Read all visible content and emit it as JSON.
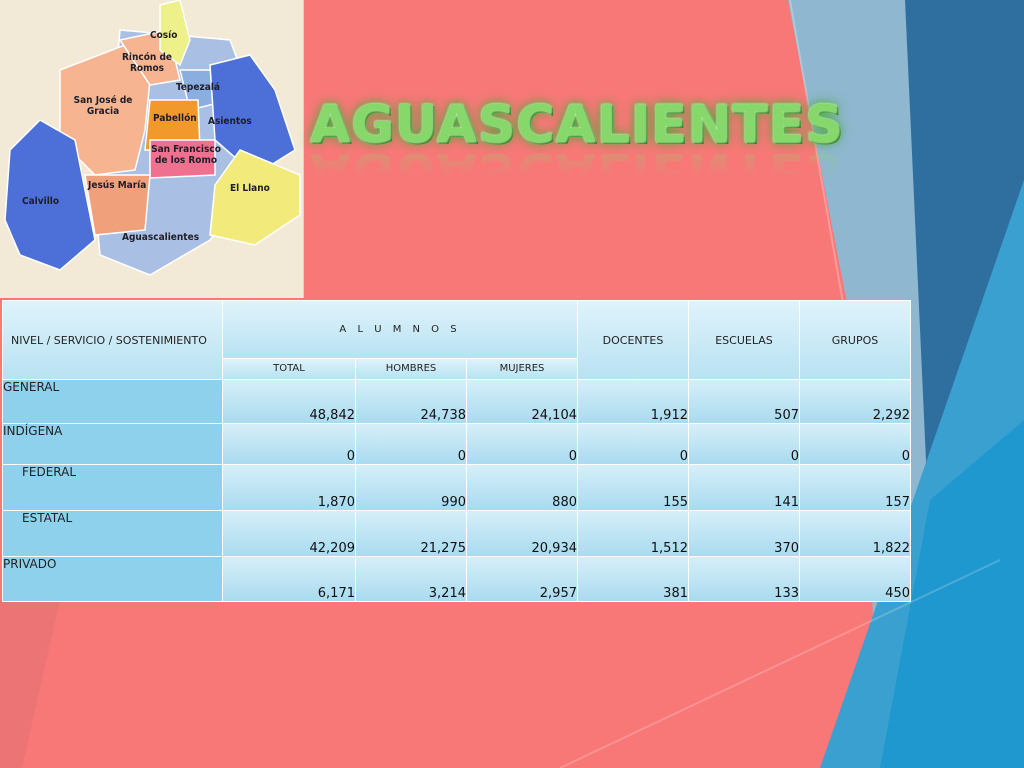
{
  "slide": {
    "title": "AGUASCALIENTES"
  },
  "map": {
    "municipalities": [
      "Cosío",
      "Rincón de Romos",
      "San José de Gracia",
      "Tepezalá",
      "Pabellón",
      "Asientos",
      "San Francisco de los Romo",
      "Jesús María",
      "Calvillo",
      "El Llano",
      "Aguascalientes"
    ]
  },
  "table": {
    "header": {
      "nivel": "NIVEL / SERVICIO / SOSTENIMIENTO",
      "alumnos": "A L U M N O S",
      "total": "TOTAL",
      "hombres": "HOMBRES",
      "mujeres": "MUJERES",
      "docentes": "DOCENTES",
      "escuelas": "ESCUELAS",
      "grupos": "GRUPOS"
    },
    "rows": [
      {
        "label": "GENERAL",
        "total": "48,842",
        "hombres": "24,738",
        "mujeres": "24,104",
        "docentes": "1,912",
        "escuelas": "507",
        "grupos": "2,292"
      },
      {
        "label": "INDÍGENA",
        "total": "0",
        "hombres": "0",
        "mujeres": "0",
        "docentes": "0",
        "escuelas": "0",
        "grupos": "0"
      },
      {
        "label": "FEDERAL",
        "total": "1,870",
        "hombres": "990",
        "mujeres": "880",
        "docentes": "155",
        "escuelas": "141",
        "grupos": "157"
      },
      {
        "label": "ESTATAL",
        "total": "42,209",
        "hombres": "21,275",
        "mujeres": "20,934",
        "docentes": "1,512",
        "escuelas": "370",
        "grupos": "1,822"
      },
      {
        "label": "PRIVADO",
        "total": "6,171",
        "hombres": "3,214",
        "mujeres": "2,957",
        "docentes": "381",
        "escuelas": "133",
        "grupos": "450"
      }
    ]
  },
  "colors": {
    "background": "#f87878",
    "title": "#86d86a",
    "header_cell": "#c8eaf6",
    "row_label_cell": "#8dd1ec",
    "value_cell": "#b8e2f2"
  }
}
